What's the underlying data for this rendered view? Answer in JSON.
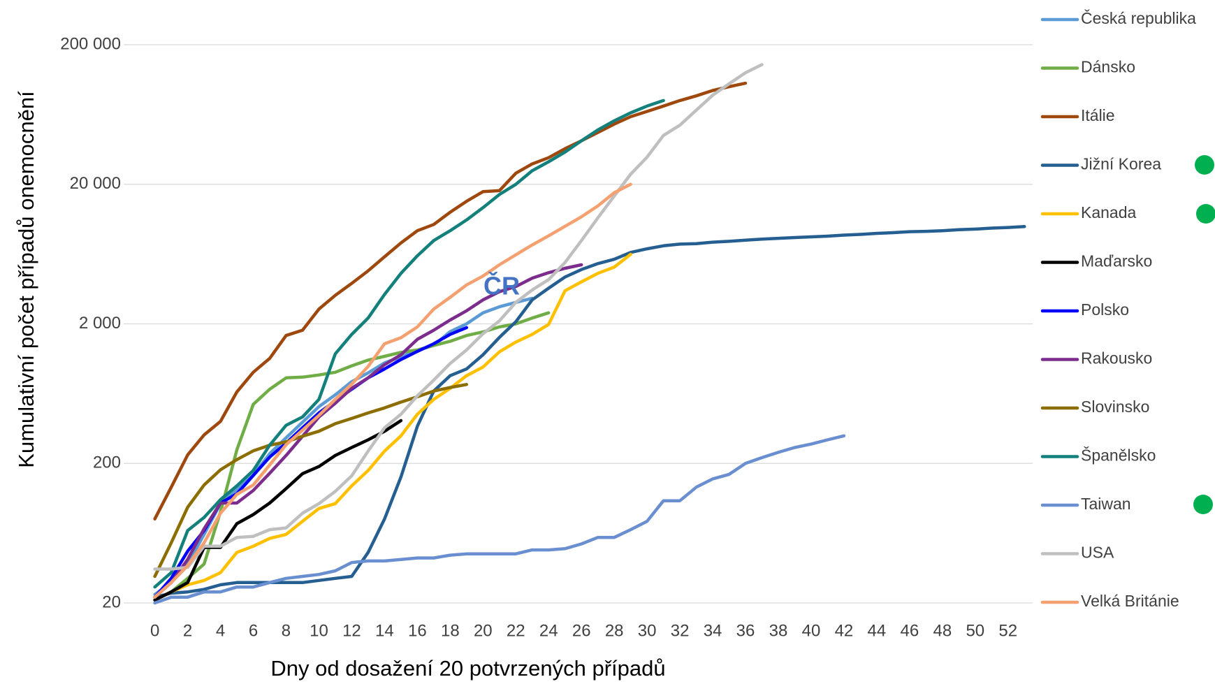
{
  "chart_data": {
    "type": "line",
    "x_label": "Dny od dosažení 20 potvrzených případů",
    "y_label": "Kumulativní počet případů onemocnění",
    "annotation": "ČR",
    "yscale": "log",
    "grid": true,
    "legend": "right",
    "xlim": [
      -1.9,
      53.5
    ],
    "ylim": [
      20,
      200000
    ],
    "xticks": [
      0,
      2,
      4,
      6,
      8,
      10,
      12,
      14,
      16,
      18,
      20,
      22,
      24,
      26,
      28,
      30,
      32,
      34,
      36,
      38,
      40,
      42,
      44,
      46,
      48,
      50,
      52
    ],
    "yticks": [
      20,
      200,
      {
        "value": 2000,
        "label": "2 000"
      },
      {
        "value": 20000,
        "label": "20 000"
      },
      {
        "value": 200000,
        "label": "200 000"
      }
    ],
    "x": [
      0,
      1,
      2,
      3,
      4,
      5,
      6,
      7,
      8,
      9,
      10,
      11,
      12,
      13,
      14,
      15,
      16,
      17,
      18,
      19,
      20,
      21,
      22,
      23,
      24,
      25,
      26,
      27,
      28,
      29,
      30,
      31,
      32,
      33,
      34,
      35,
      36,
      37,
      38,
      39,
      40,
      41,
      42,
      43,
      44,
      45,
      46,
      47,
      48,
      49,
      50,
      51,
      52,
      53
    ],
    "series": [
      {
        "name": "Česká republika",
        "color": "#5b9bd5",
        "values": [
          23,
          28,
          38,
          62,
          103,
          130,
          165,
          235,
          305,
          395,
          510,
          620,
          770,
          890,
          1050,
          1160,
          1290,
          1400,
          1760,
          2000,
          2400,
          2650,
          2850,
          3050,
          null,
          null,
          null,
          null,
          null,
          null,
          null,
          null,
          null,
          null,
          null,
          null,
          null,
          null,
          null,
          null,
          null,
          null,
          null,
          null,
          null,
          null,
          null,
          null,
          null,
          null,
          null,
          null,
          null,
          null
        ]
      },
      {
        "name": "Dánsko",
        "color": "#70ad47",
        "values": [
          21,
          24,
          30,
          38,
          90,
          250,
          530,
          680,
          820,
          830,
          860,
          900,
          1000,
          1100,
          1170,
          1250,
          1300,
          1400,
          1500,
          1650,
          1750,
          1900,
          2000,
          2200,
          2400,
          null,
          null,
          null,
          null,
          null,
          null,
          null,
          null,
          null,
          null,
          null,
          null,
          null,
          null,
          null,
          null,
          null,
          null,
          null,
          null,
          null,
          null,
          null,
          null,
          null,
          null,
          null,
          null,
          null
        ]
      },
      {
        "name": "Itálie",
        "color": "#9e480e",
        "values": [
          80,
          135,
          230,
          320,
          400,
          650,
          900,
          1130,
          1650,
          1800,
          2550,
          3200,
          3900,
          4800,
          6050,
          7600,
          9300,
          10300,
          12600,
          15100,
          17700,
          18000,
          24000,
          28000,
          31000,
          36000,
          41000,
          47000,
          54000,
          61000,
          66500,
          72700,
          79600,
          86000,
          94000,
          100000,
          106000,
          null,
          null,
          null,
          null,
          null,
          null,
          null,
          null,
          null,
          null,
          null,
          null,
          null,
          null,
          null,
          null,
          null
        ]
      },
      {
        "name": "Jižní Korea",
        "color": "#255e91",
        "values": [
          22,
          23.5,
          24,
          25,
          27,
          28,
          28,
          28,
          28,
          28,
          29,
          30,
          31,
          46,
          80,
          160,
          370,
          660,
          850,
          950,
          1200,
          1600,
          2070,
          2970,
          3600,
          4330,
          4900,
          5400,
          5800,
          6500,
          6900,
          7250,
          7450,
          7500,
          7700,
          7800,
          7950,
          8100,
          8200,
          8300,
          8400,
          8500,
          8650,
          8750,
          8900,
          9000,
          9150,
          9200,
          9300,
          9450,
          9550,
          9700,
          9800,
          9950
        ]
      },
      {
        "name": "Kanada",
        "color": "#ffc000",
        "values": [
          21,
          24,
          27,
          29,
          33,
          46,
          51,
          58,
          62,
          77,
          95,
          103,
          138,
          178,
          245,
          315,
          450,
          575,
          690,
          850,
          980,
          1260,
          1480,
          1680,
          1980,
          3450,
          4000,
          4600,
          5100,
          6300,
          null,
          null,
          null,
          null,
          null,
          null,
          null,
          null,
          null,
          null,
          null,
          null,
          null,
          null,
          null,
          null,
          null,
          null,
          null,
          null,
          null,
          null,
          null,
          null
        ]
      },
      {
        "name": "Maďarsko",
        "color": "#000000",
        "values": [
          21,
          24,
          28,
          50,
          50,
          74,
          86,
          104,
          132,
          169,
          190,
          228,
          260,
          295,
          340,
          405,
          null,
          null,
          null,
          null,
          null,
          null,
          null,
          null,
          null,
          null,
          null,
          null,
          null,
          null,
          null,
          null,
          null,
          null,
          null,
          null,
          null,
          null,
          null,
          null,
          null,
          null,
          null,
          null,
          null,
          null,
          null,
          null,
          null,
          null,
          null,
          null,
          null,
          null
        ]
      },
      {
        "name": "Polsko",
        "color": "#0000ff",
        "values": [
          22,
          30,
          47,
          66,
          104,
          121,
          164,
          222,
          280,
          360,
          460,
          560,
          680,
          820,
          950,
          1110,
          1270,
          1440,
          1680,
          1880,
          null,
          null,
          null,
          null,
          null,
          null,
          null,
          null,
          null,
          null,
          null,
          null,
          null,
          null,
          null,
          null,
          null,
          null,
          null,
          null,
          null,
          null,
          null,
          null,
          null,
          null,
          null,
          null,
          null,
          null,
          null,
          null,
          null,
          null
        ]
      },
      {
        "name": "Rakousko",
        "color": "#7b2c8c",
        "values": [
          22,
          28,
          41,
          68,
          104,
          104,
          128,
          170,
          228,
          313,
          430,
          540,
          690,
          820,
          1020,
          1200,
          1550,
          1800,
          2130,
          2480,
          2970,
          3400,
          3700,
          4250,
          4650,
          5000,
          5300,
          null,
          null,
          null,
          null,
          null,
          null,
          null,
          null,
          null,
          null,
          null,
          null,
          null,
          null,
          null,
          null,
          null,
          null,
          null,
          null,
          null,
          null,
          null,
          null,
          null,
          null,
          null
        ]
      },
      {
        "name": "Slovinsko",
        "color": "#8c6d00",
        "values": [
          31,
          54,
          97,
          140,
          180,
          213,
          246,
          270,
          285,
          313,
          340,
          385,
          420,
          460,
          500,
          550,
          600,
          660,
          700,
          735,
          null,
          null,
          null,
          null,
          null,
          null,
          null,
          null,
          null,
          null,
          null,
          null,
          null,
          null,
          null,
          null,
          null,
          null,
          null,
          null,
          null,
          null,
          null,
          null,
          null,
          null,
          null,
          null,
          null,
          null,
          null,
          null,
          null,
          null
        ]
      },
      {
        "name": "Španělsko",
        "color": "#13807b",
        "values": [
          26,
          33,
          66,
          82,
          110,
          138,
          178,
          270,
          375,
          430,
          575,
          1220,
          1680,
          2200,
          3250,
          4600,
          6150,
          7900,
          9300,
          11100,
          13600,
          16900,
          20000,
          25000,
          29000,
          34000,
          41000,
          49000,
          57000,
          65000,
          72700,
          79600,
          null,
          null,
          null,
          null,
          null,
          null,
          null,
          null,
          null,
          null,
          null,
          null,
          null,
          null,
          null,
          null,
          null,
          null,
          null,
          null,
          null,
          null
        ]
      },
      {
        "name": "Taiwan",
        "color": "#6a8fd0",
        "values": [
          20,
          22,
          22,
          24,
          24,
          26,
          26,
          28,
          30,
          31,
          32,
          34,
          39,
          40,
          40,
          41,
          42,
          42,
          44,
          45,
          45,
          45,
          45,
          48,
          48,
          49,
          53,
          59,
          59,
          67,
          77,
          108,
          108,
          135,
          155,
          167,
          200,
          220,
          240,
          260,
          275,
          295,
          315,
          null,
          null,
          null,
          null,
          null,
          null,
          null,
          null,
          null,
          null,
          null
        ]
      },
      {
        "name": "USA",
        "color": "#bfbfbf",
        "values": [
          35,
          35,
          36,
          51,
          51,
          59,
          60,
          67,
          69,
          88,
          103,
          126,
          163,
          245,
          360,
          450,
          610,
          790,
          1040,
          1300,
          1700,
          2100,
          2850,
          3500,
          4150,
          5500,
          7900,
          11500,
          16500,
          23600,
          31300,
          44800,
          53000,
          68000,
          87000,
          105000,
          126000,
          144000,
          null,
          null,
          null,
          null,
          null,
          null,
          null,
          null,
          null,
          null,
          null,
          null,
          null,
          null,
          null,
          null
        ]
      },
      {
        "name": "Velká Británie",
        "color": "#f4a070",
        "values": [
          22,
          28,
          37,
          54,
          88,
          120,
          140,
          195,
          272,
          346,
          442,
          575,
          740,
          990,
          1440,
          1590,
          1900,
          2550,
          3100,
          3800,
          4400,
          5300,
          6250,
          7350,
          8550,
          10000,
          11700,
          14000,
          17400,
          20000,
          null,
          null,
          null,
          null,
          null,
          null,
          null,
          null,
          null,
          null,
          null,
          null,
          null,
          null,
          null,
          null,
          null,
          null,
          null,
          null,
          null,
          null,
          null,
          null
        ]
      }
    ]
  }
}
